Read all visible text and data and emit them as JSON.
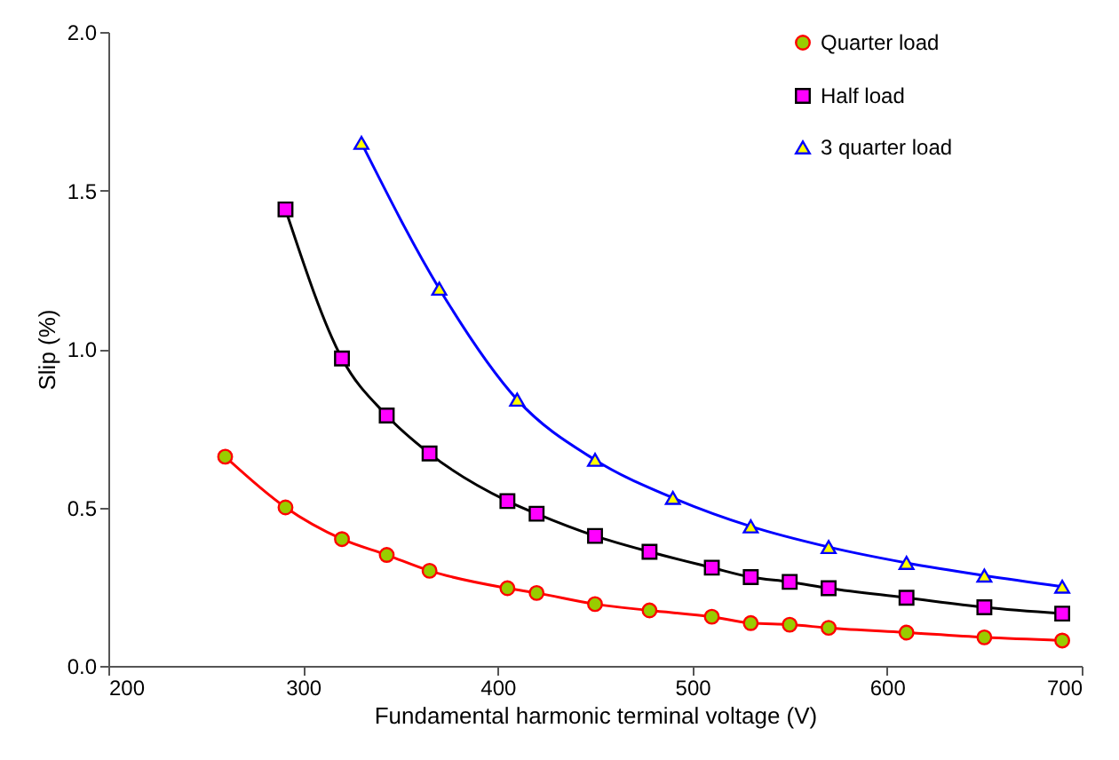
{
  "chart_data": {
    "type": "line",
    "xlabel": "Fundamental harmonic terminal voltage (V)",
    "ylabel": "Slip (%)",
    "xlim": [
      200,
      700
    ],
    "xticks": [
      200,
      300,
      400,
      500,
      600,
      700
    ],
    "ylim": [
      0,
      2.0
    ],
    "yticks": [
      {
        "value": 0,
        "label": "0.0"
      },
      0.5,
      {
        "value": 1,
        "label": "1.0"
      },
      1.5,
      {
        "value": 2,
        "label": "2.0"
      }
    ],
    "grid": false,
    "legend": "top right",
    "series": [
      {
        "name": "Quarter load",
        "color": "#ff0000",
        "marker": "circle",
        "colors": [
          "#99cc00",
          "#99cc00",
          "#99cc00",
          "#99cc00",
          "#99cc00",
          "#99cc00",
          "#99cc00",
          "#99cc00",
          "#99cc00",
          "#99cc00",
          "#99cc00",
          "#99cc00",
          "#99cc00",
          "#99cc00",
          "#99cc00",
          "#99cc00"
        ],
        "x": [
          260,
          291,
          320,
          343,
          365,
          405,
          420,
          450,
          478,
          510,
          530,
          550,
          570,
          610,
          650,
          690
        ],
        "values": [
          0.66,
          0.5,
          0.4,
          0.35,
          0.3,
          0.245,
          0.23,
          0.195,
          0.175,
          0.155,
          0.135,
          0.13,
          0.12,
          0.105,
          0.09,
          0.08
        ]
      },
      {
        "name": "Half load",
        "color": "#000000",
        "marker": "square",
        "colors": [
          "#ff00ff",
          "#ff00ff",
          "#ff00ff",
          "#ff00ff",
          "#ff00ff",
          "#ff00ff",
          "#ff00ff",
          "#ff00ff",
          "#ff00ff",
          "#ff00ff",
          "#ff00ff",
          "#ff00ff",
          "#ff00ff",
          "#ff00ff",
          "#ff00ff"
        ],
        "x": [
          291,
          320,
          343,
          365,
          405,
          420,
          450,
          478,
          510,
          530,
          550,
          570,
          610,
          650,
          690
        ],
        "values": [
          1.44,
          0.97,
          0.79,
          0.67,
          0.52,
          0.48,
          0.41,
          0.36,
          0.31,
          0.28,
          0.265,
          0.245,
          0.215,
          0.185,
          0.165
        ]
      },
      {
        "name": "3 quarter load",
        "color": "#0000ff",
        "marker": "triangle",
        "colors": [
          "#ffff00",
          "#ffff00",
          "#ffff00",
          "#ffff00",
          "#ffff00",
          "#ffff00",
          "#ffff00",
          "#ffff00",
          "#ffff00",
          "#ffff00"
        ],
        "x": [
          330,
          370,
          410,
          450,
          490,
          530,
          570,
          610,
          650,
          690
        ],
        "values": [
          1.65,
          1.19,
          0.84,
          0.65,
          0.53,
          0.44,
          0.375,
          0.325,
          0.285,
          0.25
        ]
      }
    ]
  }
}
